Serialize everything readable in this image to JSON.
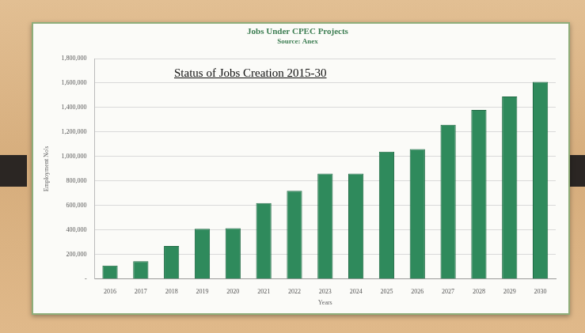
{
  "chart_data": {
    "type": "bar",
    "title": "Jobs Under CPEC Projects",
    "subtitle": "Source: Anex",
    "annotation": "Status of Jobs Creation 2015-30",
    "x_label": "Years",
    "y_label": "Employment No's",
    "categories": [
      "2016",
      "2017",
      "2018",
      "2019",
      "2020",
      "2021",
      "2022",
      "2023",
      "2024",
      "2025",
      "2026",
      "2027",
      "2028",
      "2029",
      "2030"
    ],
    "values": [
      110000,
      145000,
      270000,
      410000,
      415000,
      620000,
      720000,
      860000,
      860000,
      1040000,
      1060000,
      1260000,
      1380000,
      1490000,
      1610000
    ],
    "color": "#2f8a5c",
    "ylim": [
      0,
      1800000
    ],
    "yticks": [
      {
        "value": 0,
        "label": "-"
      },
      {
        "value": 200000,
        "label": "200,000"
      },
      {
        "value": 400000,
        "label": "400,000"
      },
      {
        "value": 600000,
        "label": "600,000"
      },
      {
        "value": 800000,
        "label": "800,000"
      },
      {
        "value": 1000000,
        "label": "1,000,000"
      },
      {
        "value": 1200000,
        "label": "1,200,000"
      },
      {
        "value": 1400000,
        "label": "1,400,000"
      },
      {
        "value": 1600000,
        "label": "1,600,000"
      },
      {
        "value": 1800000,
        "label": "1,800,000"
      }
    ],
    "grid": true,
    "data_labels": false
  }
}
